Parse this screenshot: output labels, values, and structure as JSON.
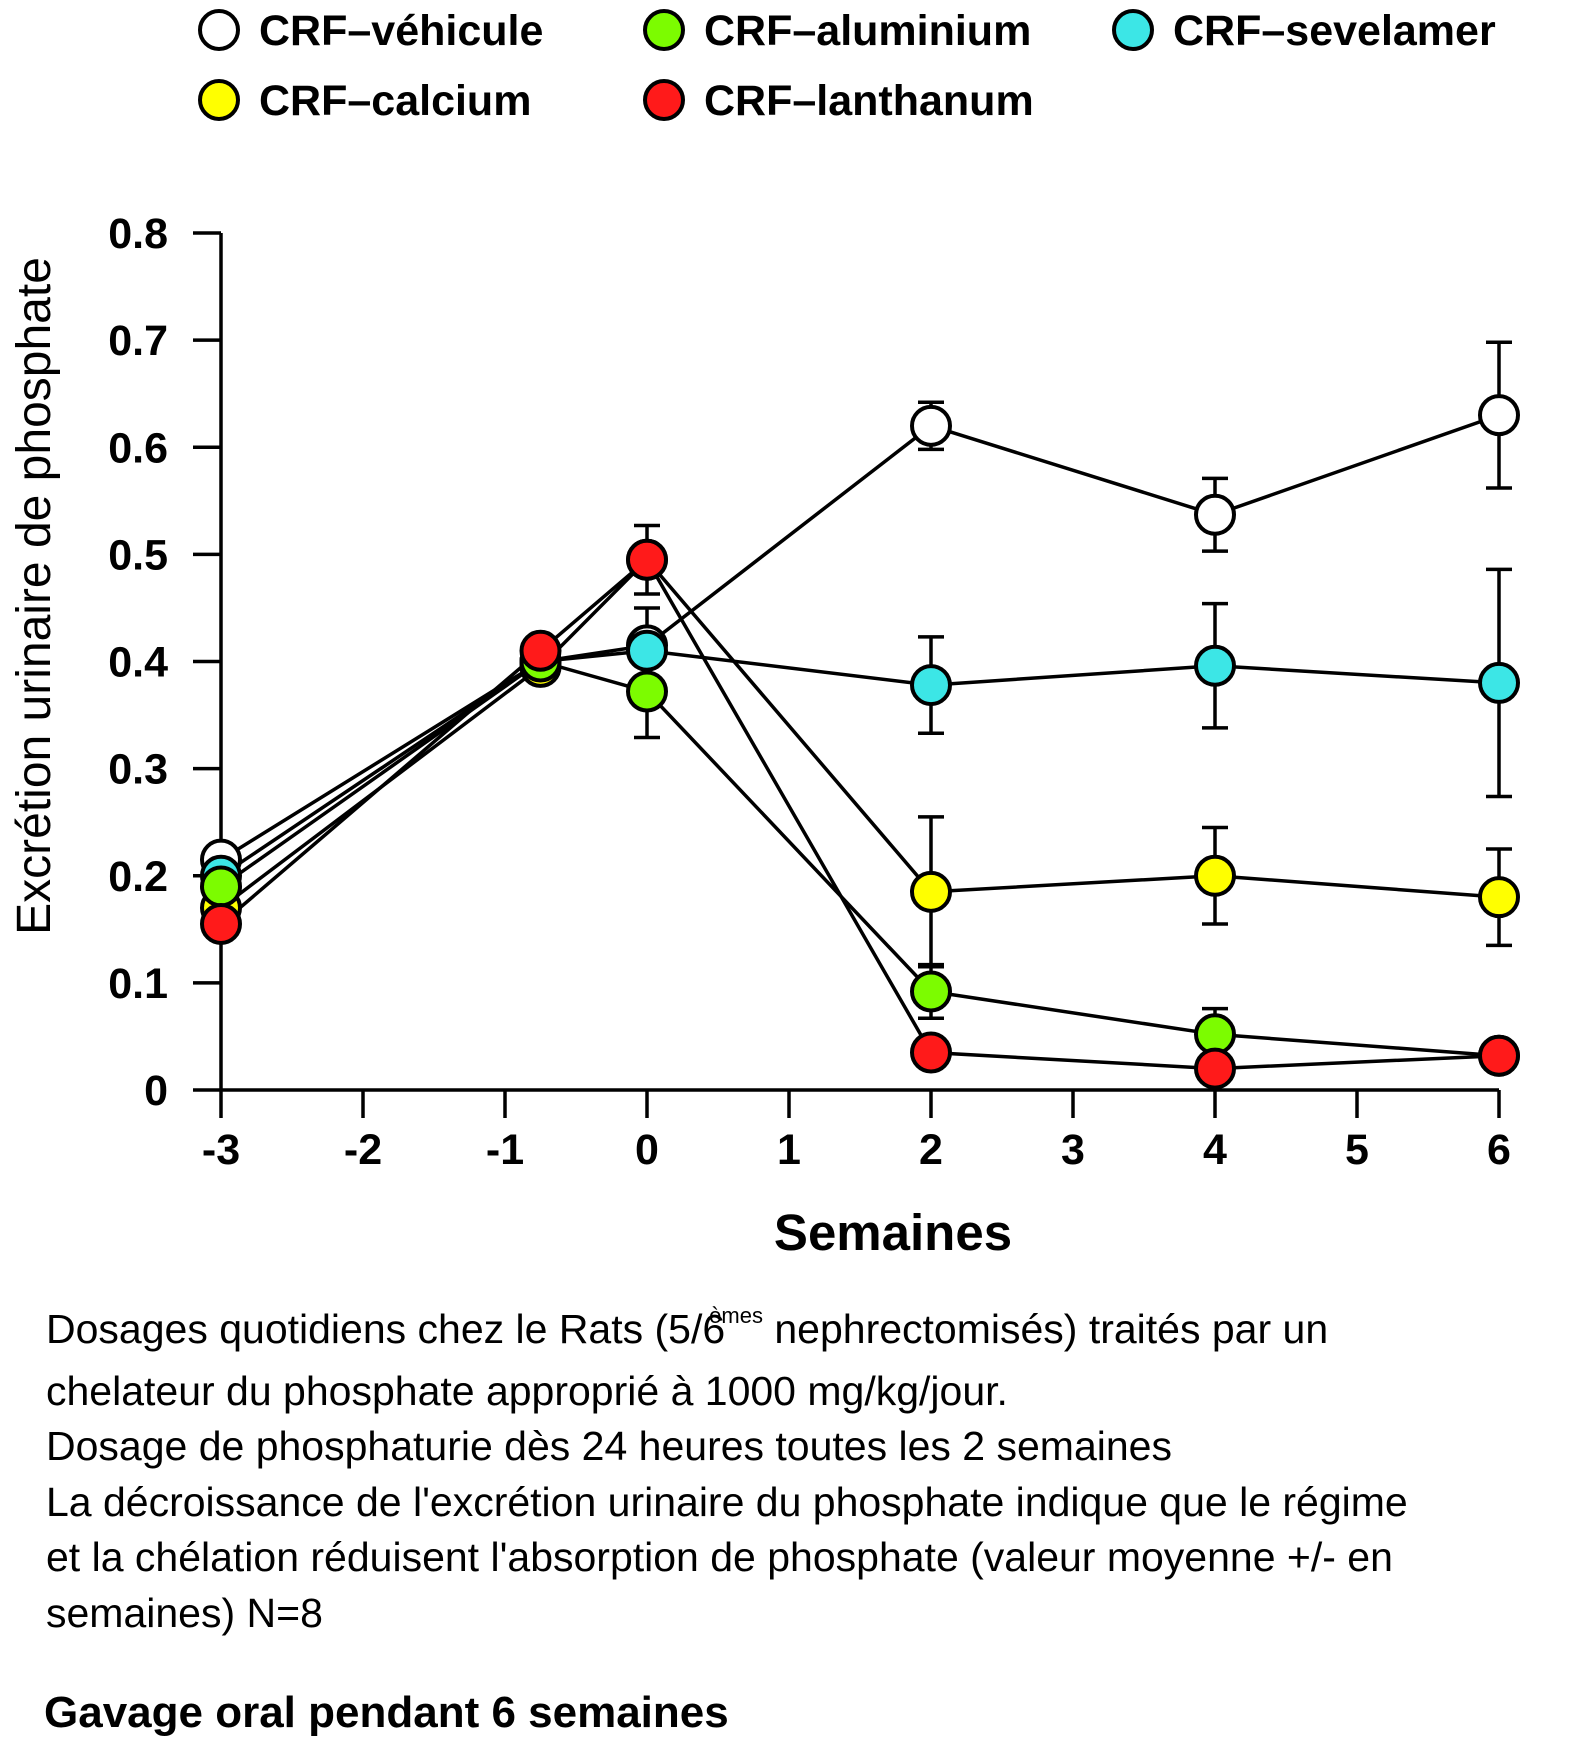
{
  "chart_data": {
    "type": "line",
    "xlabel": "Semaines",
    "ylabel": "Excrétion urinaire de phosphate",
    "xlim": [
      -3,
      6
    ],
    "ylim": [
      0,
      0.8
    ],
    "xticks": [
      "-3",
      "-2",
      "-1",
      "0",
      "1",
      "2",
      "3",
      "4",
      "5",
      "6"
    ],
    "yticks": [
      "0",
      "0.1",
      "0.2",
      "0.3",
      "0.4",
      "0.5",
      "0.6",
      "0.7",
      "0.8"
    ],
    "legend_position": "top",
    "series": [
      {
        "name": "CRF–véhicule",
        "color": "#ffffff",
        "x": [
          -3,
          -0.75,
          0,
          2,
          4,
          6
        ],
        "y": [
          0.215,
          0.4,
          0.415,
          0.62,
          0.537,
          0.63
        ],
        "error": [
          null,
          null,
          null,
          0.022,
          0.034,
          0.068
        ]
      },
      {
        "name": "CRF–aluminium",
        "color": "#7cfc00",
        "x": [
          -3,
          -0.75,
          0,
          2,
          4,
          6
        ],
        "y": [
          0.19,
          0.4,
          0.372,
          0.092,
          0.052,
          0.032
        ],
        "error": [
          null,
          null,
          0.043,
          0.025,
          0.024,
          null
        ]
      },
      {
        "name": "CRF–sevelamer",
        "color": "#3ce6e6",
        "x": [
          -3,
          -0.75,
          0,
          2,
          4,
          6
        ],
        "y": [
          0.2,
          0.4,
          0.41,
          0.378,
          0.396,
          0.38
        ],
        "error": [
          null,
          null,
          0.04,
          0.045,
          0.058,
          0.106
        ]
      },
      {
        "name": "CRF–calcium",
        "color": "#ffff00",
        "x": [
          -3,
          -0.75,
          0,
          2,
          4,
          6
        ],
        "y": [
          0.17,
          0.395,
          0.495,
          0.185,
          0.2,
          0.18
        ],
        "error": [
          null,
          null,
          0.032,
          0.07,
          0.045,
          0.045
        ]
      },
      {
        "name": "CRF–lanthanum",
        "color": "#ff1a1a",
        "x": [
          -3,
          -0.75,
          0,
          2,
          4,
          6
        ],
        "y": [
          0.155,
          0.41,
          0.495,
          0.035,
          0.02,
          0.032
        ],
        "error": [
          null,
          null,
          null,
          null,
          null,
          null
        ]
      }
    ]
  },
  "caption": {
    "line1_before": "Dosages quotidiens chez le Rats (5/6",
    "line1_sup": "èmes",
    "line1_after": " nephrectomisés) traités par un",
    "line2": "chelateur du phosphate approprié à 1000 mg/kg/jour.",
    "line3": "Dosage de phosphaturie dès 24 heures toutes les 2 semaines",
    "line4": "La décroissance de l'excrétion urinaire du phosphate indique que le régime",
    "line5": "et la chélation réduisent l'absorption de phosphate (valeur moyenne +/- en",
    "line6": "semaines) N=8"
  },
  "footer": "Gavage oral pendant 6 semaines"
}
